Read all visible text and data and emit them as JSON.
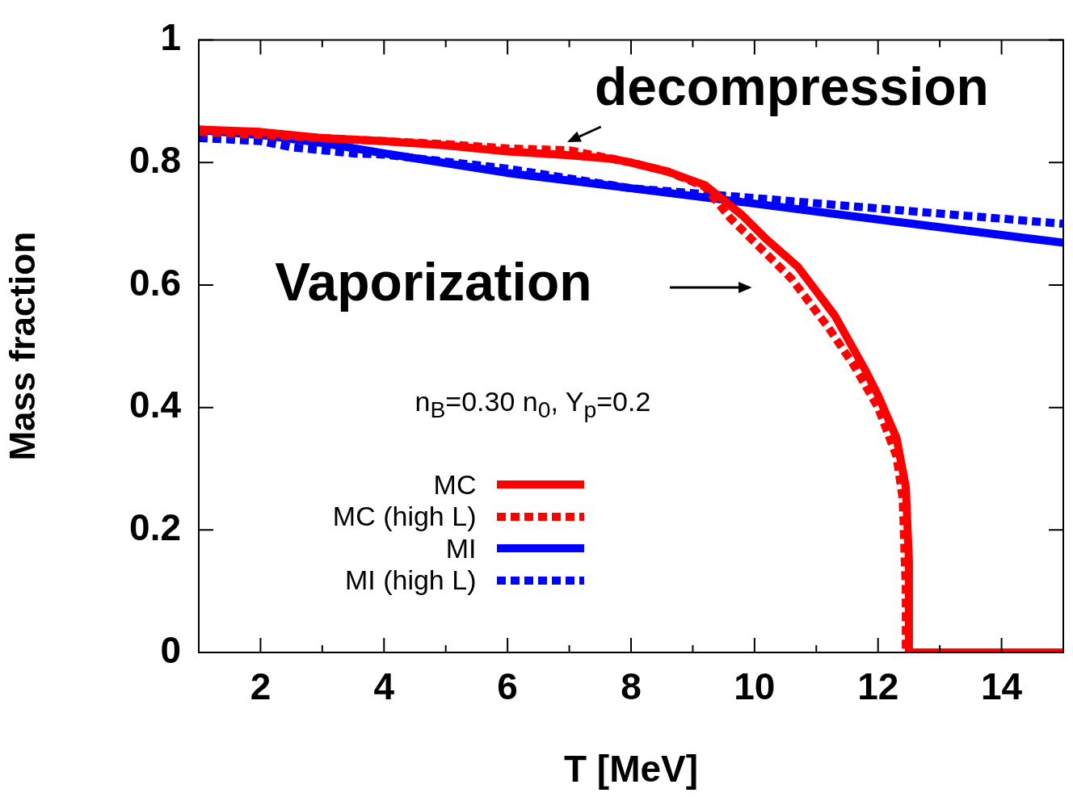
{
  "chart_data": {
    "type": "line",
    "xlabel": "T [MeV]",
    "ylabel": "Mass fraction",
    "xlim": [
      1,
      15
    ],
    "ylim": [
      0,
      1
    ],
    "xticks": [
      2,
      4,
      6,
      8,
      10,
      12,
      14,
      {
        "value": 3,
        "label": null
      },
      {
        "value": 5,
        "label": null
      },
      {
        "value": 7,
        "label": null
      },
      {
        "value": 9,
        "label": null
      },
      {
        "value": 11,
        "label": null
      },
      {
        "value": 13,
        "label": null
      }
    ],
    "yticks": [
      0,
      0.2,
      0.4,
      0.6,
      0.8,
      1
    ],
    "grid": false,
    "legend": "bottom left",
    "marker": "none",
    "series": [
      {
        "name": "MC",
        "color": "#ff0000",
        "line_style": "solid",
        "x": [
          1,
          2,
          3,
          4,
          5,
          6,
          7,
          7.7,
          8,
          8.6,
          9.2,
          9.8,
          10.2,
          10.7,
          11.3,
          11.8,
          12.0,
          12.3,
          12.45,
          12.5,
          12.5,
          15
        ],
        "values": [
          0.854,
          0.85,
          0.84,
          0.835,
          0.828,
          0.818,
          0.812,
          0.806,
          0.8,
          0.785,
          0.763,
          0.714,
          0.674,
          0.63,
          0.55,
          0.46,
          0.42,
          0.35,
          0.27,
          0.15,
          0,
          0
        ]
      },
      {
        "name": "MC (high L)",
        "color": "#ff0000",
        "line_style": "dashed",
        "x": [
          1,
          3,
          5,
          6,
          7,
          8,
          8.6,
          9.2,
          9.6,
          10,
          10.6,
          11.2,
          11.6,
          12,
          12.3,
          12.4,
          12.45,
          12.45,
          15
        ],
        "values": [
          0.85,
          0.84,
          0.83,
          0.823,
          0.82,
          0.8,
          0.785,
          0.76,
          0.71,
          0.67,
          0.61,
          0.53,
          0.47,
          0.4,
          0.32,
          0.25,
          0.1,
          0,
          0
        ]
      },
      {
        "name": "MI",
        "color": "#0000ff",
        "line_style": "solid",
        "x": [
          1,
          2,
          3,
          4,
          6,
          8,
          10,
          12,
          15
        ],
        "values": [
          0.853,
          0.845,
          0.832,
          0.815,
          0.783,
          0.758,
          0.733,
          0.707,
          0.669
        ]
      },
      {
        "name": "MI (high L)",
        "color": "#0000ff",
        "line_style": "dashed",
        "x": [
          1,
          2,
          2.5,
          3.5,
          4,
          6,
          8,
          10,
          12,
          15
        ],
        "values": [
          0.84,
          0.835,
          0.825,
          0.815,
          0.813,
          0.79,
          0.758,
          0.742,
          0.725,
          0.7
        ]
      }
    ],
    "annotations": [
      "decompression",
      "Vaporization",
      "n$_{B}$=0.30 n$_{0}$, Y$_{p}$=0.2"
    ]
  }
}
